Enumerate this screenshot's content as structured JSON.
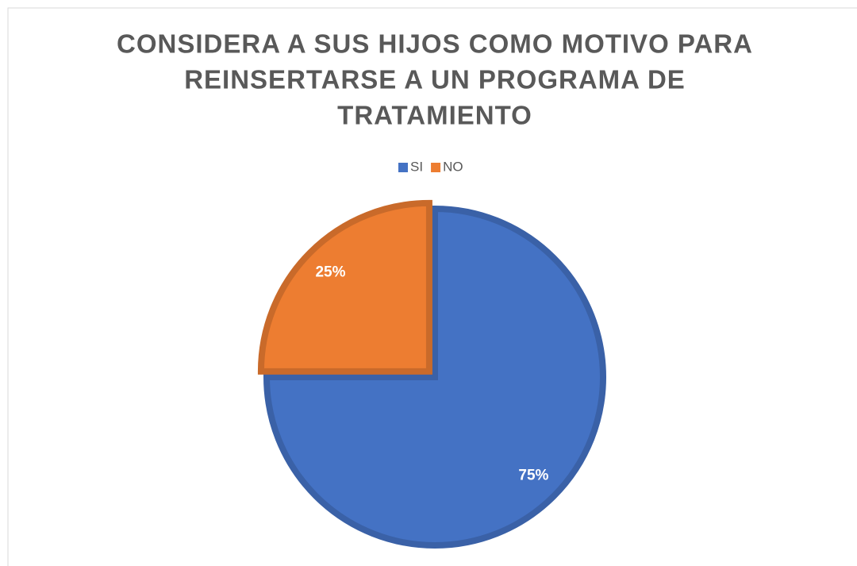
{
  "chart_data": {
    "type": "pie",
    "title": [
      "CONSIDERA A SUS HIJOS COMO MOTIVO PARA",
      "REINSERTARSE A UN PROGRAMA DE",
      "TRATAMIENTO"
    ],
    "categories": [
      "SI",
      "NO"
    ],
    "values": [
      75,
      25
    ],
    "value_labels": [
      "75%",
      "25%"
    ],
    "colors": [
      "#4472c4",
      "#ed7d31"
    ],
    "legend": "top"
  }
}
